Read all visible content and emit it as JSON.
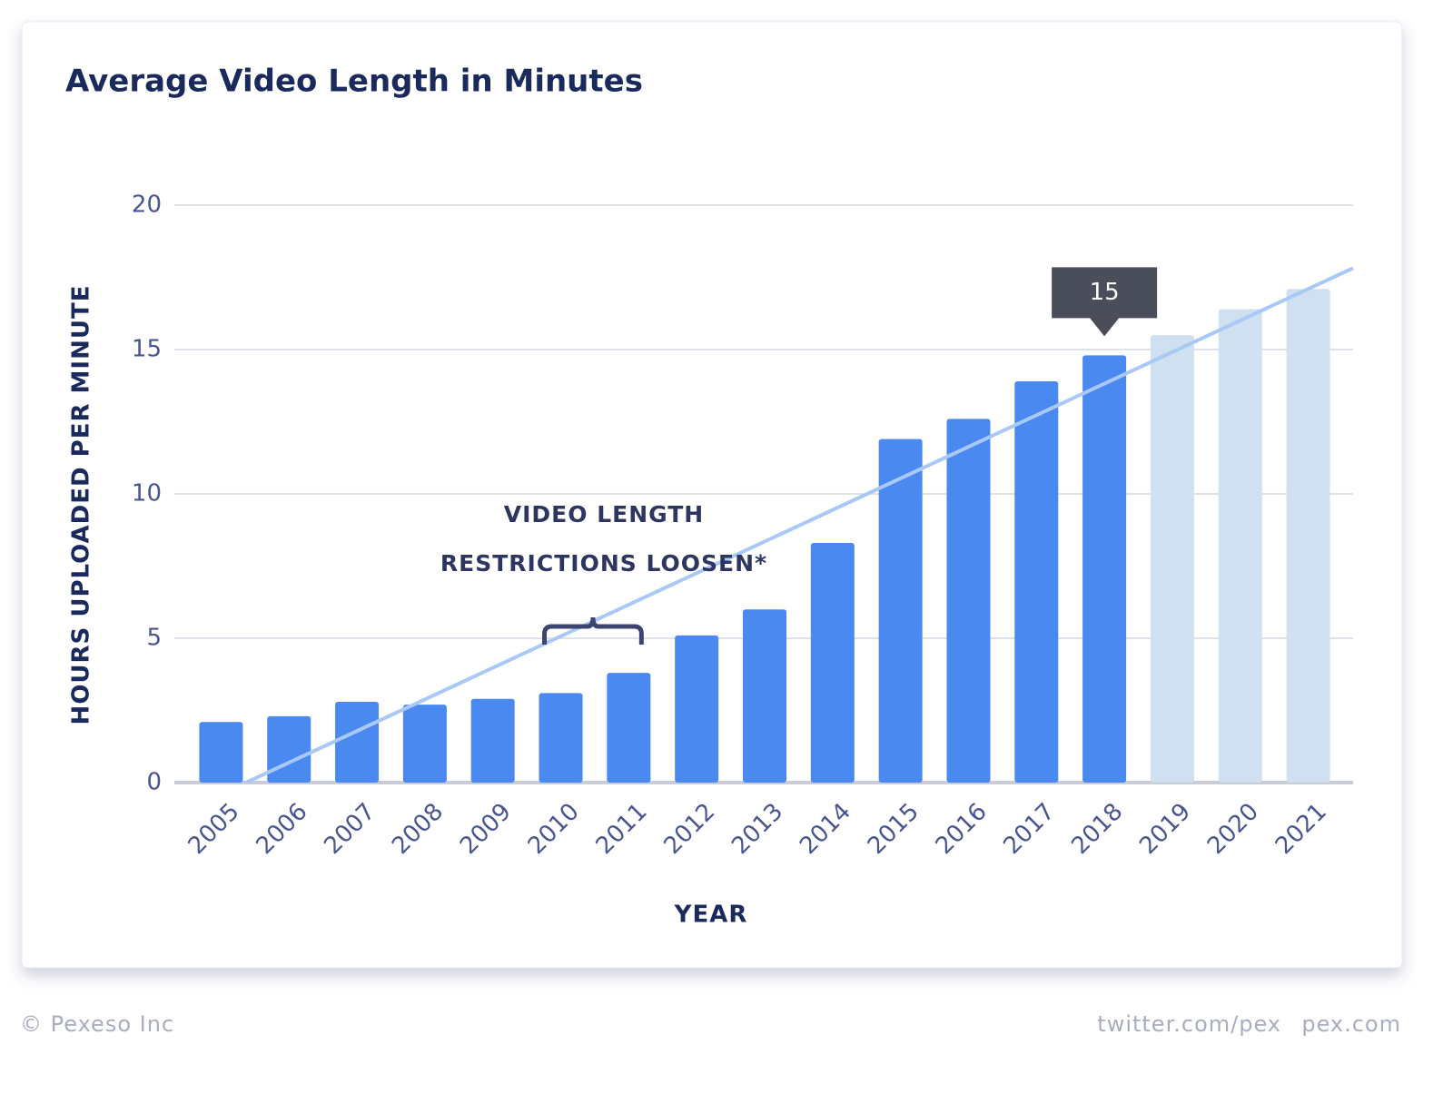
{
  "chart_data": {
    "type": "bar",
    "title": "Average Video Length in Minutes",
    "y_label": "HOURS UPLOADED PER MINUTE",
    "x_label": "YEAR",
    "categories": [
      "2005",
      "2006",
      "2007",
      "2008",
      "2009",
      "2010",
      "2011",
      "2012",
      "2013",
      "2014",
      "2015",
      "2016",
      "2017",
      "2018",
      "2019",
      "2020",
      "2021"
    ],
    "series": [
      {
        "color": "#4a89f0",
        "values": [
          2.1,
          2.3,
          2.8,
          2.7,
          2.9,
          3.1,
          3.8,
          5.1,
          6.0,
          8.3,
          11.9,
          12.6,
          13.9,
          14.8,
          null,
          null,
          null
        ]
      },
      {
        "color": "#cfe0f0",
        "values": [
          null,
          null,
          null,
          null,
          null,
          null,
          null,
          null,
          null,
          null,
          null,
          null,
          null,
          null,
          15.5,
          16.4,
          17.1
        ]
      }
    ],
    "trend": {
      "color": "#a9c8f5",
      "values": [
        -0.4,
        17.1
      ]
    },
    "tooltip": {
      "category_index": 13,
      "label": "15"
    },
    "annotation": {
      "lines": [
        "VIDEO LENGTH",
        "RESTRICTIONS LOOSEN*"
      ],
      "from_index": 5,
      "to_index": 6
    },
    "ylim": [
      0,
      20
    ],
    "yticks": [
      0,
      5,
      10,
      15,
      20
    ],
    "grid": true
  },
  "footer": {
    "left": "© Pexeso Inc",
    "right": [
      "twitter.com/pex",
      "pex.com"
    ]
  }
}
